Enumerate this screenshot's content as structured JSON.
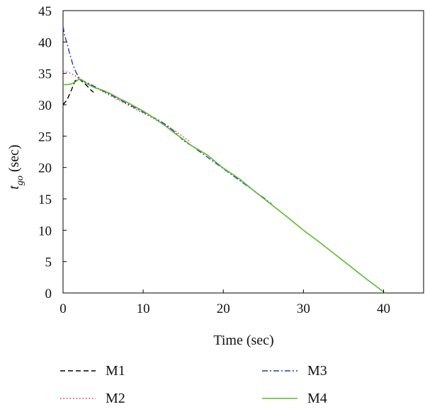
{
  "chart_data": {
    "type": "line",
    "title": "",
    "xlabel": "Time (sec)",
    "ylabel": {
      "main": "t",
      "sub": "go",
      "suffix": " (sec)"
    },
    "xlim": [
      0,
      45
    ],
    "ylim": [
      0,
      45
    ],
    "xticks": [
      0,
      10,
      20,
      30,
      40
    ],
    "yticks": [
      0,
      5,
      10,
      15,
      20,
      25,
      30,
      35,
      40,
      45
    ],
    "grid": false,
    "legend_position": "bottom",
    "series": [
      {
        "name": "M1",
        "color": "#000000",
        "style": "dashed",
        "x": [
          0,
          0.5,
          1.0,
          1.5,
          2.0,
          2.5,
          3.0,
          3.5,
          3.8
        ],
        "y": [
          30.0,
          30.8,
          32.2,
          33.8,
          34.1,
          33.6,
          33.0,
          32.3,
          32.0
        ]
      },
      {
        "name": "M2",
        "color": "#e8202a",
        "style": "dotted",
        "x": [
          0,
          0.5,
          1.0,
          1.5,
          2.0,
          2.5,
          3.0,
          3.5,
          3.8,
          12.0,
          13.0,
          14.0,
          15.0,
          16.0
        ],
        "y": [
          35.3,
          35.2,
          35.0,
          34.6,
          34.2,
          33.8,
          33.4,
          33.1,
          32.9,
          27.3,
          26.6,
          25.8,
          24.9,
          24.0
        ]
      },
      {
        "name": "M3",
        "color": "#1f3fa6",
        "style": "dashdot",
        "x": [
          0,
          0.2,
          0.5,
          0.8,
          1.2,
          1.6,
          2.0,
          2.5,
          3.0,
          3.5,
          3.8,
          12.0,
          13.0,
          14.0,
          15.0,
          16.0,
          25.0,
          26.0
        ],
        "y": [
          42.5,
          41.0,
          39.8,
          38.3,
          36.5,
          35.2,
          34.3,
          33.8,
          33.5,
          33.2,
          33.0,
          27.5,
          26.7,
          25.6,
          24.3,
          23.5,
          15.2,
          14.2
        ]
      },
      {
        "name": "M4",
        "color": "#5cbb2b",
        "style": "solid",
        "x": [
          0,
          0.5,
          1.0,
          1.5,
          2.0,
          2.5,
          3.0,
          4.0,
          5.0,
          6.0,
          7.0,
          8.0,
          9.0,
          10.0,
          11.0,
          12.0,
          13.0,
          14.0,
          15.0,
          16.0,
          18.0,
          20.0,
          22.0,
          24.0,
          26.0,
          28.0,
          30.0,
          32.0,
          34.0,
          36.0,
          38.0,
          40.2
        ],
        "y": [
          33.2,
          33.2,
          33.3,
          33.6,
          34.1,
          33.8,
          33.3,
          32.7,
          32.3,
          31.7,
          31.0,
          30.4,
          29.7,
          29.0,
          28.2,
          27.3,
          26.4,
          25.4,
          24.5,
          23.5,
          22.0,
          19.9,
          18.2,
          16.1,
          14.1,
          12.1,
          10.0,
          8.1,
          6.1,
          4.1,
          2.1,
          0.0
        ]
      }
    ]
  }
}
